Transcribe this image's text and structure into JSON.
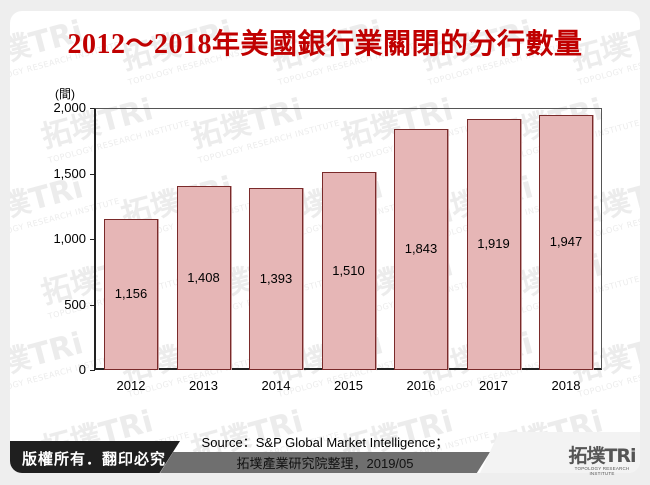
{
  "title": "2012～2018年美國銀行業關閉的分行數量",
  "watermark": {
    "main": "拓墣TRi",
    "sub": "TOPOLOGY RESEARCH INSTITUTE"
  },
  "chart_data": {
    "type": "bar",
    "title": "2012～2018年美國銀行業關閉的分行數量",
    "xlabel": "",
    "ylabel": "(間)",
    "categories": [
      "2012",
      "2013",
      "2014",
      "2015",
      "2016",
      "2017",
      "2018"
    ],
    "values": [
      1156,
      1408,
      1393,
      1510,
      1843,
      1919,
      1947
    ],
    "value_labels": [
      "1,156",
      "1,408",
      "1,393",
      "1,510",
      "1,843",
      "1,919",
      "1,947"
    ],
    "ylim": [
      0,
      2000
    ],
    "yticks": [
      "0",
      "500",
      "1,000",
      "1,500",
      "2,000"
    ],
    "bar_color": "#e6b6b6",
    "bar_edge_color": "#7a2a2a",
    "grid": false,
    "legend": null
  },
  "footer": {
    "copyright": "版權所有．翻印必究",
    "source_line1": "Source：S&P Global Market Intelligence；",
    "source_line2": "拓墣產業研究院整理，2019/05",
    "logo_main": "拓墣TRi",
    "logo_sub": "TOPOLOGY RESEARCH INSTITUTE"
  }
}
